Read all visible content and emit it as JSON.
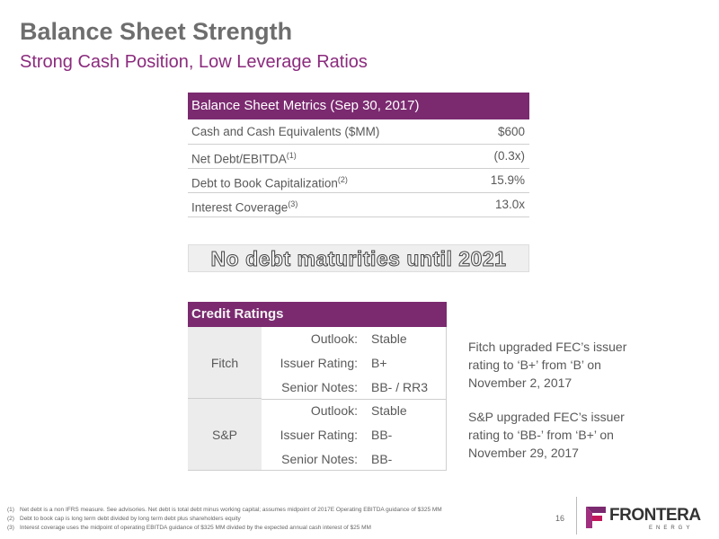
{
  "header": {
    "title": "Balance Sheet Strength",
    "subtitle": "Strong Cash Position, Low Leverage Ratios"
  },
  "metrics": {
    "title": "Balance Sheet Metrics (Sep 30, 2017)",
    "rows": [
      {
        "label": "Cash and Cash Equivalents ($MM)",
        "value": "$600"
      },
      {
        "label": "Net Debt/EBITDA",
        "note": "(1)",
        "value": "(0.3x)"
      },
      {
        "label": "Debt to Book Capitalization",
        "note": "(2)",
        "value": "15.9%"
      },
      {
        "label": "Interest Coverage",
        "note": "(3)",
        "value": "13.0x"
      }
    ]
  },
  "banner": "No debt maturities until 2021",
  "ratings": {
    "title": "Credit Ratings",
    "agencies": [
      {
        "name": "Fitch",
        "rows": [
          {
            "label": "Outlook:",
            "value": "Stable"
          },
          {
            "label": "Issuer Rating:",
            "value": "B+"
          },
          {
            "label": "Senior Notes:",
            "value": "BB- / RR3"
          }
        ]
      },
      {
        "name": "S&P",
        "rows": [
          {
            "label": "Outlook:",
            "value": "Stable"
          },
          {
            "label": "Issuer Rating:",
            "value": "BB-"
          },
          {
            "label": "Senior Notes:",
            "value": "BB-"
          }
        ]
      }
    ]
  },
  "comments": [
    "Fitch upgraded FEC’s issuer rating to ‘B+’ from ‘B’ on November 2, 2017",
    "S&P upgraded FEC’s issuer rating to ‘BB-’ from ‘B+’ on November 29, 2017"
  ],
  "footnotes": [
    {
      "marker": "(1)",
      "text": "Net debt is a non IFRS measure. See advisories. Net debt is total debt minus working capital; assumes midpoint of 2017E Operating EBITDA guidance of $325 MM"
    },
    {
      "marker": "(2)",
      "text": "Debt to book cap is long term debt divided by long term debt plus shareholders equity"
    },
    {
      "marker": "(3)",
      "text": "Interest coverage uses the midpoint of operating EBITDA guidance of $325 MM divided by the expected annual cash interest of $25 MM"
    }
  ],
  "page_number": "16",
  "logo": {
    "name": "FRONTERA",
    "tagline": "ENERGY"
  }
}
